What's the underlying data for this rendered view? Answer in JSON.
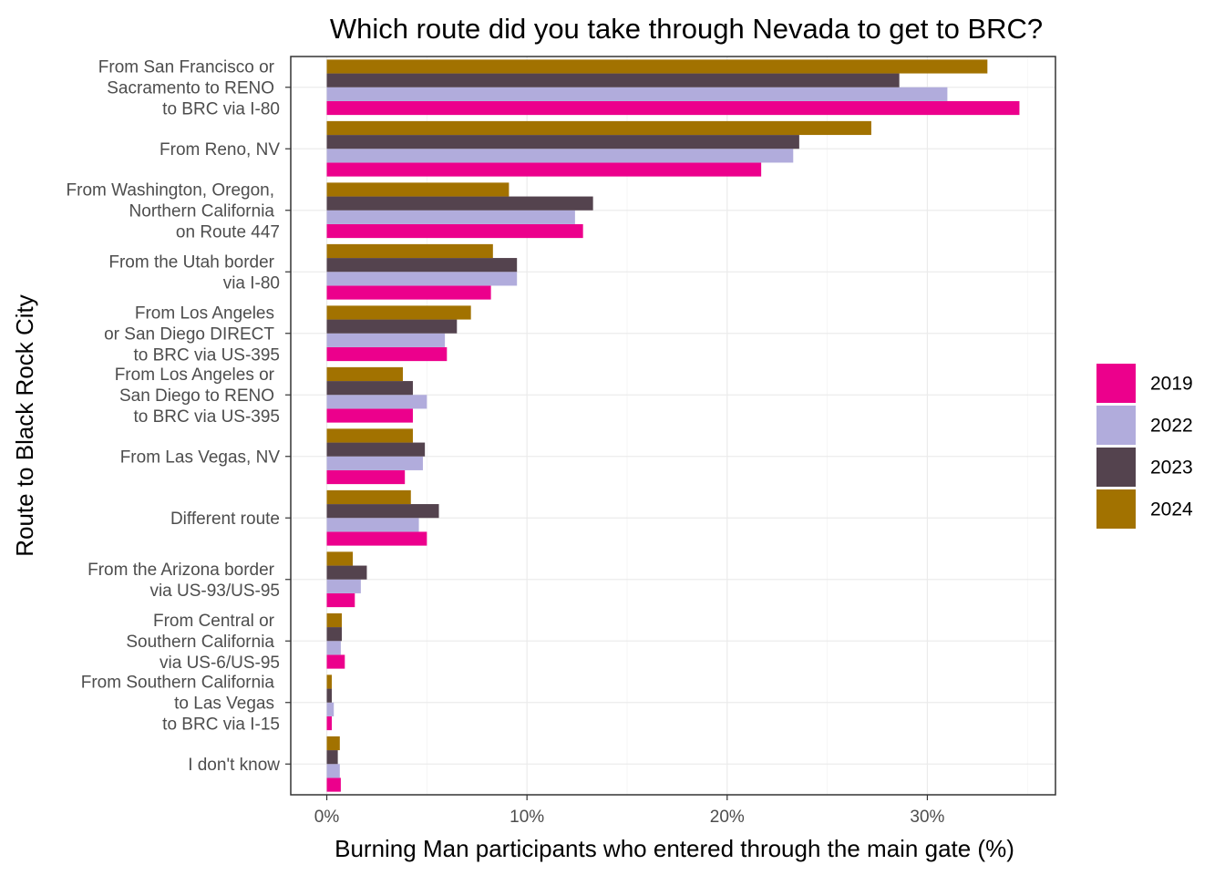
{
  "chart_data": {
    "type": "bar",
    "orientation": "horizontal",
    "title": "Which route did you take through Nevada to get to BRC?",
    "xlabel": "Burning Man participants who entered through the main gate (%)",
    "ylabel": "Route to Black Rock City",
    "xlim": [
      -1.8,
      36.4
    ],
    "x_ticks": [
      0,
      10,
      20,
      30
    ],
    "x_tick_labels": [
      "0%",
      "10%",
      "20%",
      "30%"
    ],
    "grid": true,
    "legend_position": "right",
    "categories": [
      [
        "From San Francisco or",
        "Sacramento to RENO",
        "to BRC via I-80"
      ],
      [
        "From Reno, NV"
      ],
      [
        "From Washington, Oregon,",
        "Northern California",
        "on Route 447"
      ],
      [
        "From the Utah border",
        "via I-80"
      ],
      [
        "From Los Angeles",
        "or San Diego DIRECT",
        "to BRC via US-395"
      ],
      [
        "From Los Angeles or",
        "San Diego to RENO",
        "to BRC via US-395"
      ],
      [
        "From Las Vegas, NV"
      ],
      [
        "Different route"
      ],
      [
        "From the Arizona border",
        "via US-93/US-95"
      ],
      [
        "From Central or",
        "Southern California",
        "via US-6/US-95"
      ],
      [
        "From Southern California",
        "to Las Vegas",
        "to BRC via I-15"
      ],
      [
        "I don't know"
      ]
    ],
    "series": [
      {
        "name": "2019",
        "color": "#ec008c",
        "values": [
          34.6,
          21.7,
          12.8,
          8.2,
          6.0,
          4.3,
          3.9,
          5.0,
          1.4,
          0.9,
          0.25,
          0.7
        ]
      },
      {
        "name": "2022",
        "color": "#b1acdc",
        "values": [
          31.0,
          23.3,
          12.4,
          9.5,
          5.9,
          5.0,
          4.8,
          4.6,
          1.7,
          0.7,
          0.35,
          0.65
        ]
      },
      {
        "name": "2023",
        "color": "#54434e",
        "values": [
          28.6,
          23.6,
          13.3,
          9.5,
          6.5,
          4.3,
          4.9,
          5.6,
          2.0,
          0.75,
          0.25,
          0.55
        ]
      },
      {
        "name": "2024",
        "color": "#a27200",
        "values": [
          33.0,
          27.2,
          9.1,
          8.3,
          7.2,
          3.8,
          4.3,
          4.2,
          1.3,
          0.75,
          0.25,
          0.65
        ]
      }
    ]
  }
}
